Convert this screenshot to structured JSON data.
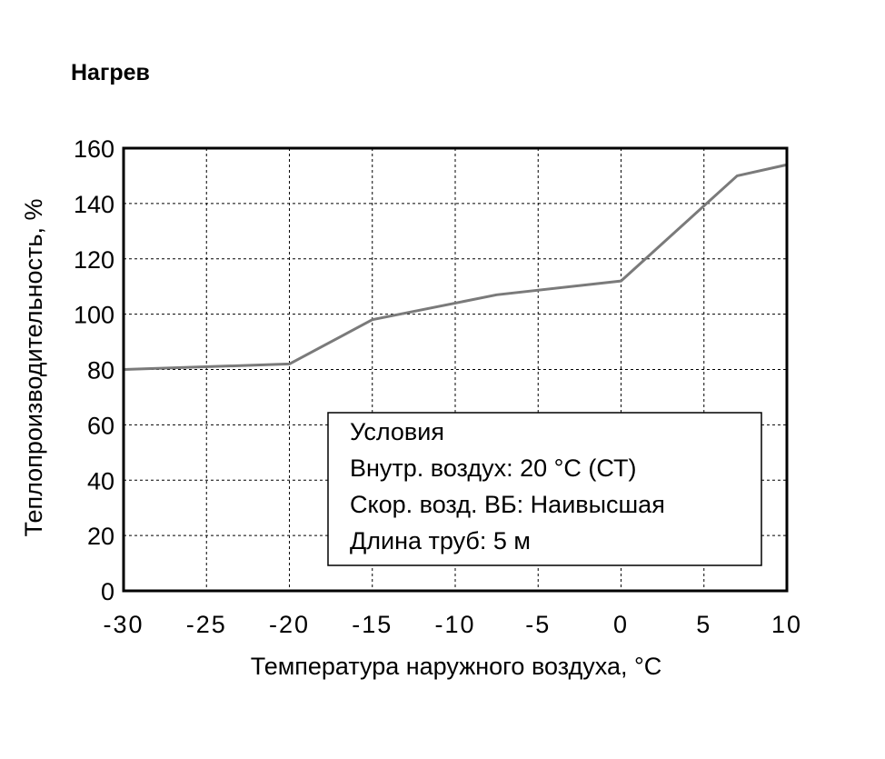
{
  "chart_data": {
    "type": "line",
    "title": "Нагрев",
    "xlabel": "Температура наружного воздуха, °C",
    "ylabel": "Теплопроизводительность, %",
    "xlim": [
      -30,
      10
    ],
    "ylim": [
      0,
      160
    ],
    "x_ticks": [
      -30,
      -25,
      -20,
      -15,
      -10,
      -5,
      0,
      5,
      10
    ],
    "x_tick_labels": [
      "-30",
      "-25",
      "-20",
      "-15",
      "-10",
      "-5",
      "0",
      "5",
      "10"
    ],
    "y_ticks": [
      0,
      20,
      40,
      60,
      80,
      100,
      120,
      140,
      160
    ],
    "y_tick_labels": [
      "0",
      "20",
      "40",
      "60",
      "80",
      "100",
      "120",
      "140",
      "160"
    ],
    "grid": true,
    "series": [
      {
        "x": [
          -30,
          -20,
          -15,
          -7.5,
          0,
          7,
          10
        ],
        "y": [
          80,
          82,
          98,
          107,
          112,
          150,
          154
        ]
      }
    ],
    "colors": {
      "line": "#7a7a7a",
      "grid": "#000000",
      "frame": "#000000"
    },
    "legend": {
      "placement": "bottom-right",
      "lines": [
        "Условия",
        "Внутр. воздух: 20 °C (СТ)",
        "Скор. возд. ВБ: Наивысшая",
        "Длина труб: 5 м"
      ]
    }
  }
}
